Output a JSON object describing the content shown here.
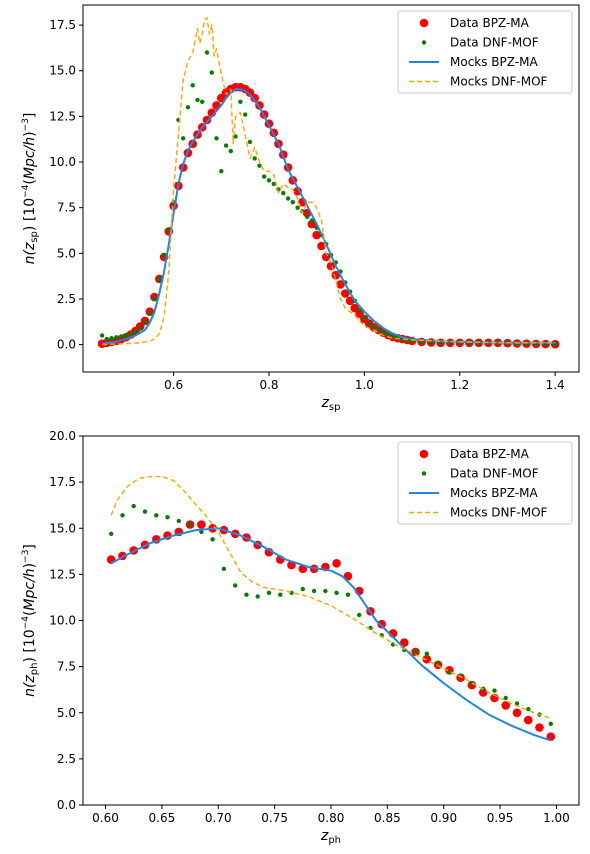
{
  "chart_data": [
    {
      "type": "scatter",
      "xlabel": "z_sp",
      "ylabel": "n(z_sp)   [10^-4 (Mpc/h)^-3]",
      "xlim": [
        0.41,
        1.45
      ],
      "ylim": [
        -1.5,
        18.6
      ],
      "xticks": [
        0.6,
        0.8,
        1.0,
        1.2,
        1.4
      ],
      "xtick_labels": [
        "0.6",
        "0.8",
        "1.0",
        "1.2",
        "1.4"
      ],
      "yticks": [
        0.0,
        2.5,
        5.0,
        7.5,
        10.0,
        12.5,
        15.0,
        17.5
      ],
      "ytick_labels": [
        "0.0",
        "2.5",
        "5.0",
        "7.5",
        "10.0",
        "12.5",
        "15.0",
        "17.5"
      ],
      "legend": "top-right",
      "series": [
        {
          "name": "Data BPZ-MA",
          "style": "big-dot",
          "color": "#ff0000",
          "x": [
            0.45,
            0.46,
            0.47,
            0.48,
            0.49,
            0.5,
            0.51,
            0.52,
            0.53,
            0.54,
            0.55,
            0.56,
            0.57,
            0.58,
            0.59,
            0.6,
            0.61,
            0.62,
            0.63,
            0.64,
            0.65,
            0.66,
            0.67,
            0.68,
            0.69,
            0.7,
            0.71,
            0.72,
            0.73,
            0.74,
            0.75,
            0.76,
            0.77,
            0.78,
            0.79,
            0.8,
            0.81,
            0.82,
            0.83,
            0.84,
            0.85,
            0.86,
            0.87,
            0.88,
            0.89,
            0.9,
            0.91,
            0.92,
            0.93,
            0.94,
            0.95,
            0.96,
            0.97,
            0.98,
            0.99,
            1.0,
            1.01,
            1.02,
            1.03,
            1.04,
            1.05,
            1.06,
            1.07,
            1.08,
            1.09,
            1.1,
            1.12,
            1.14,
            1.16,
            1.18,
            1.2,
            1.22,
            1.24,
            1.26,
            1.28,
            1.3,
            1.32,
            1.34,
            1.36,
            1.38,
            1.4
          ],
          "y": [
            0.05,
            0.1,
            0.15,
            0.2,
            0.3,
            0.4,
            0.55,
            0.75,
            1.0,
            1.3,
            1.8,
            2.6,
            3.6,
            4.8,
            6.2,
            7.6,
            8.7,
            9.7,
            10.5,
            11.0,
            11.5,
            11.9,
            12.3,
            12.7,
            13.1,
            13.5,
            13.8,
            14.0,
            14.1,
            14.1,
            14.0,
            13.8,
            13.5,
            13.1,
            12.6,
            12.1,
            11.6,
            11.0,
            10.4,
            9.7,
            9.0,
            8.4,
            7.8,
            7.2,
            6.6,
            6.0,
            5.4,
            4.8,
            4.3,
            3.8,
            3.3,
            2.8,
            2.4,
            2.0,
            1.7,
            1.4,
            1.15,
            0.95,
            0.8,
            0.65,
            0.52,
            0.42,
            0.35,
            0.3,
            0.25,
            0.2,
            0.15,
            0.12,
            0.1,
            0.1,
            0.1,
            0.1,
            0.1,
            0.1,
            0.1,
            0.08,
            0.06,
            0.05,
            0.04,
            0.03,
            0.02
          ]
        },
        {
          "name": "Data DNF-MOF",
          "style": "small-dot",
          "color": "#008000",
          "x": [
            0.45,
            0.46,
            0.47,
            0.48,
            0.49,
            0.5,
            0.51,
            0.52,
            0.53,
            0.54,
            0.55,
            0.56,
            0.57,
            0.58,
            0.59,
            0.6,
            0.61,
            0.62,
            0.63,
            0.64,
            0.65,
            0.66,
            0.67,
            0.68,
            0.69,
            0.7,
            0.71,
            0.72,
            0.73,
            0.74,
            0.75,
            0.76,
            0.77,
            0.78,
            0.79,
            0.8,
            0.81,
            0.82,
            0.83,
            0.84,
            0.85,
            0.86,
            0.87,
            0.88,
            0.89,
            0.9,
            0.91,
            0.92,
            0.93,
            0.94,
            0.95,
            0.96,
            0.97,
            0.98,
            0.99,
            1.0,
            1.01,
            1.02,
            1.03,
            1.04,
            1.05,
            1.06,
            1.07,
            1.08,
            1.09,
            1.1,
            1.12,
            1.14,
            1.16,
            1.18,
            1.2,
            1.22,
            1.24,
            1.26,
            1.28,
            1.3,
            1.32,
            1.34,
            1.36,
            1.38,
            1.4
          ],
          "y": [
            0.5,
            0.3,
            0.35,
            0.4,
            0.45,
            0.5,
            0.55,
            0.7,
            0.9,
            1.2,
            1.7,
            2.5,
            3.6,
            4.9,
            6.3,
            7.8,
            12.3,
            11.3,
            13.0,
            14.2,
            13.4,
            13.3,
            16.0,
            14.9,
            11.3,
            9.5,
            10.9,
            10.6,
            11.4,
            13.3,
            12.6,
            11.1,
            10.2,
            9.8,
            9.2,
            9.0,
            8.8,
            8.5,
            8.3,
            8.0,
            7.8,
            7.5,
            7.3,
            7.0,
            6.8,
            6.4,
            6.0,
            5.5,
            4.9,
            4.5,
            4.0,
            3.4,
            2.9,
            2.4,
            1.9,
            1.5,
            1.15,
            0.95,
            0.8,
            0.65,
            0.55,
            0.45,
            0.35,
            0.3,
            0.25,
            0.2,
            0.15,
            0.12,
            0.1,
            0.1,
            0.1,
            0.1,
            0.1,
            0.1,
            0.1,
            0.08,
            0.06,
            0.05,
            0.04,
            0.03,
            0.02
          ]
        },
        {
          "name": "Mocks BPZ-MA",
          "style": "solid",
          "color": "#1e88e5",
          "x": [
            0.45,
            0.48,
            0.5,
            0.52,
            0.54,
            0.55,
            0.56,
            0.57,
            0.58,
            0.59,
            0.6,
            0.61,
            0.62,
            0.63,
            0.64,
            0.65,
            0.66,
            0.67,
            0.68,
            0.69,
            0.7,
            0.71,
            0.72,
            0.73,
            0.74,
            0.75,
            0.76,
            0.78,
            0.8,
            0.82,
            0.84,
            0.86,
            0.88,
            0.9,
            0.92,
            0.94,
            0.96,
            0.98,
            1.0,
            1.02,
            1.04,
            1.06,
            1.08,
            1.1,
            1.15,
            1.2,
            1.25,
            1.3,
            1.35,
            1.4
          ],
          "y": [
            0.05,
            0.15,
            0.3,
            0.5,
            0.8,
            1.2,
            1.8,
            2.8,
            4.0,
            5.5,
            7.2,
            8.8,
            9.9,
            10.6,
            11.1,
            11.5,
            11.9,
            12.2,
            12.5,
            12.8,
            13.1,
            13.5,
            13.8,
            14.0,
            14.0,
            13.9,
            13.7,
            13.0,
            12.0,
            11.0,
            9.6,
            8.6,
            7.6,
            6.6,
            5.5,
            4.3,
            3.3,
            2.4,
            1.8,
            1.3,
            0.9,
            0.6,
            0.4,
            0.3,
            0.2,
            0.15,
            0.12,
            0.1,
            0.1,
            0.1
          ]
        },
        {
          "name": "Mocks DNF-MOF",
          "style": "dashed",
          "color": "#ffa500",
          "x": [
            0.45,
            0.5,
            0.53,
            0.55,
            0.56,
            0.57,
            0.58,
            0.59,
            0.6,
            0.61,
            0.62,
            0.63,
            0.64,
            0.65,
            0.655,
            0.66,
            0.665,
            0.67,
            0.675,
            0.68,
            0.685,
            0.69,
            0.695,
            0.7,
            0.71,
            0.72,
            0.725,
            0.73,
            0.74,
            0.75,
            0.76,
            0.77,
            0.78,
            0.79,
            0.8,
            0.81,
            0.82,
            0.83,
            0.84,
            0.85,
            0.86,
            0.87,
            0.88,
            0.89,
            0.9,
            0.91,
            0.92,
            0.93,
            0.94,
            0.95,
            0.96,
            0.97,
            0.98,
            1.0,
            1.02,
            1.04,
            1.06,
            1.08,
            1.1,
            1.15,
            1.2,
            1.3,
            1.4
          ],
          "y": [
            0.0,
            0.05,
            0.1,
            0.2,
            0.3,
            0.6,
            1.5,
            4.0,
            8.5,
            11.5,
            14.5,
            15.5,
            16.0,
            17.3,
            16.5,
            17.0,
            17.8,
            17.9,
            17.0,
            17.5,
            15.8,
            16.2,
            15.5,
            14.8,
            13.7,
            14.0,
            11.0,
            12.5,
            12.7,
            11.5,
            10.2,
            10.8,
            10.0,
            9.5,
            9.5,
            9.3,
            8.3,
            8.8,
            8.6,
            8.5,
            8.0,
            7.2,
            7.8,
            7.8,
            7.5,
            6.8,
            5.0,
            4.5,
            3.5,
            2.5,
            2.0,
            1.8,
            1.6,
            1.0,
            0.8,
            0.5,
            0.35,
            0.3,
            0.25,
            0.2,
            0.15,
            0.1,
            0.1
          ]
        }
      ]
    },
    {
      "type": "scatter",
      "xlabel": "z_ph",
      "ylabel": "n(z_ph)   [10^-4 (Mpc/h)^-3]",
      "xlim": [
        0.58,
        1.02
      ],
      "ylim": [
        0.0,
        20.0
      ],
      "xticks": [
        0.6,
        0.65,
        0.7,
        0.75,
        0.8,
        0.85,
        0.9,
        0.95,
        1.0
      ],
      "xtick_labels": [
        "0.60",
        "0.65",
        "0.70",
        "0.75",
        "0.80",
        "0.85",
        "0.90",
        "0.95",
        "1.00"
      ],
      "yticks": [
        0.0,
        2.5,
        5.0,
        7.5,
        10.0,
        12.5,
        15.0,
        17.5,
        20.0
      ],
      "ytick_labels": [
        "0.0",
        "2.5",
        "5.0",
        "7.5",
        "10.0",
        "12.5",
        "15.0",
        "17.5",
        "20.0"
      ],
      "legend": "top-right",
      "series": [
        {
          "name": "Data BPZ-MA",
          "style": "big-dot",
          "color": "#ff0000",
          "x": [
            0.605,
            0.615,
            0.625,
            0.635,
            0.645,
            0.655,
            0.665,
            0.675,
            0.685,
            0.695,
            0.705,
            0.715,
            0.725,
            0.735,
            0.745,
            0.755,
            0.765,
            0.775,
            0.785,
            0.795,
            0.805,
            0.815,
            0.825,
            0.835,
            0.845,
            0.855,
            0.865,
            0.875,
            0.885,
            0.895,
            0.905,
            0.915,
            0.925,
            0.935,
            0.945,
            0.955,
            0.965,
            0.975,
            0.985,
            0.995
          ],
          "y": [
            13.3,
            13.5,
            13.8,
            14.1,
            14.4,
            14.6,
            14.8,
            15.2,
            15.2,
            15.0,
            14.9,
            14.7,
            14.5,
            14.1,
            13.7,
            13.3,
            13.0,
            12.8,
            12.8,
            12.9,
            13.1,
            12.4,
            11.6,
            10.5,
            9.8,
            9.3,
            8.8,
            8.3,
            7.9,
            7.6,
            7.3,
            6.9,
            6.5,
            6.1,
            5.8,
            5.4,
            5.0,
            4.6,
            4.2,
            3.7
          ]
        },
        {
          "name": "Data DNF-MOF",
          "style": "small-dot",
          "color": "#008000",
          "x": [
            0.605,
            0.615,
            0.625,
            0.635,
            0.645,
            0.655,
            0.665,
            0.675,
            0.685,
            0.695,
            0.705,
            0.715,
            0.725,
            0.735,
            0.745,
            0.755,
            0.765,
            0.775,
            0.785,
            0.795,
            0.805,
            0.815,
            0.825,
            0.835,
            0.845,
            0.855,
            0.865,
            0.875,
            0.885,
            0.895,
            0.905,
            0.915,
            0.925,
            0.935,
            0.945,
            0.955,
            0.965,
            0.975,
            0.985,
            0.995
          ],
          "y": [
            14.7,
            15.7,
            16.2,
            15.9,
            15.7,
            15.6,
            15.4,
            15.2,
            14.8,
            14.4,
            12.8,
            11.9,
            11.4,
            11.3,
            11.5,
            11.4,
            11.5,
            11.7,
            11.6,
            11.6,
            11.5,
            11.4,
            10.3,
            9.6,
            9.2,
            8.7,
            8.4,
            8.3,
            8.2,
            7.7,
            7.2,
            7.0,
            6.6,
            6.3,
            6.2,
            5.8,
            5.5,
            5.2,
            4.9,
            4.4
          ]
        },
        {
          "name": "Mocks BPZ-MA",
          "style": "solid",
          "color": "#1e88e5",
          "x": [
            0.605,
            0.62,
            0.64,
            0.66,
            0.68,
            0.7,
            0.72,
            0.74,
            0.76,
            0.78,
            0.8,
            0.81,
            0.82,
            0.83,
            0.84,
            0.86,
            0.88,
            0.9,
            0.92,
            0.94,
            0.96,
            0.98,
            0.995
          ],
          "y": [
            13.1,
            13.6,
            14.2,
            14.6,
            14.9,
            15.0,
            14.6,
            14.0,
            13.3,
            12.9,
            12.7,
            12.4,
            11.8,
            10.9,
            10.0,
            8.8,
            7.6,
            6.6,
            5.7,
            4.9,
            4.3,
            3.8,
            3.5
          ]
        },
        {
          "name": "Mocks DNF-MOF",
          "style": "dashed",
          "color": "#ffa500",
          "x": [
            0.605,
            0.61,
            0.62,
            0.63,
            0.64,
            0.65,
            0.66,
            0.67,
            0.68,
            0.69,
            0.7,
            0.71,
            0.72,
            0.73,
            0.74,
            0.75,
            0.76,
            0.78,
            0.8,
            0.82,
            0.84,
            0.86,
            0.88,
            0.9,
            0.92,
            0.94,
            0.96,
            0.98,
            0.995
          ],
          "y": [
            15.7,
            16.5,
            17.3,
            17.7,
            17.8,
            17.8,
            17.6,
            17.0,
            16.3,
            15.6,
            14.8,
            13.7,
            12.6,
            12.1,
            11.8,
            11.7,
            11.6,
            11.3,
            10.8,
            10.1,
            9.3,
            8.6,
            8.0,
            7.4,
            6.8,
            6.1,
            5.5,
            5.0,
            4.7
          ]
        }
      ]
    }
  ]
}
